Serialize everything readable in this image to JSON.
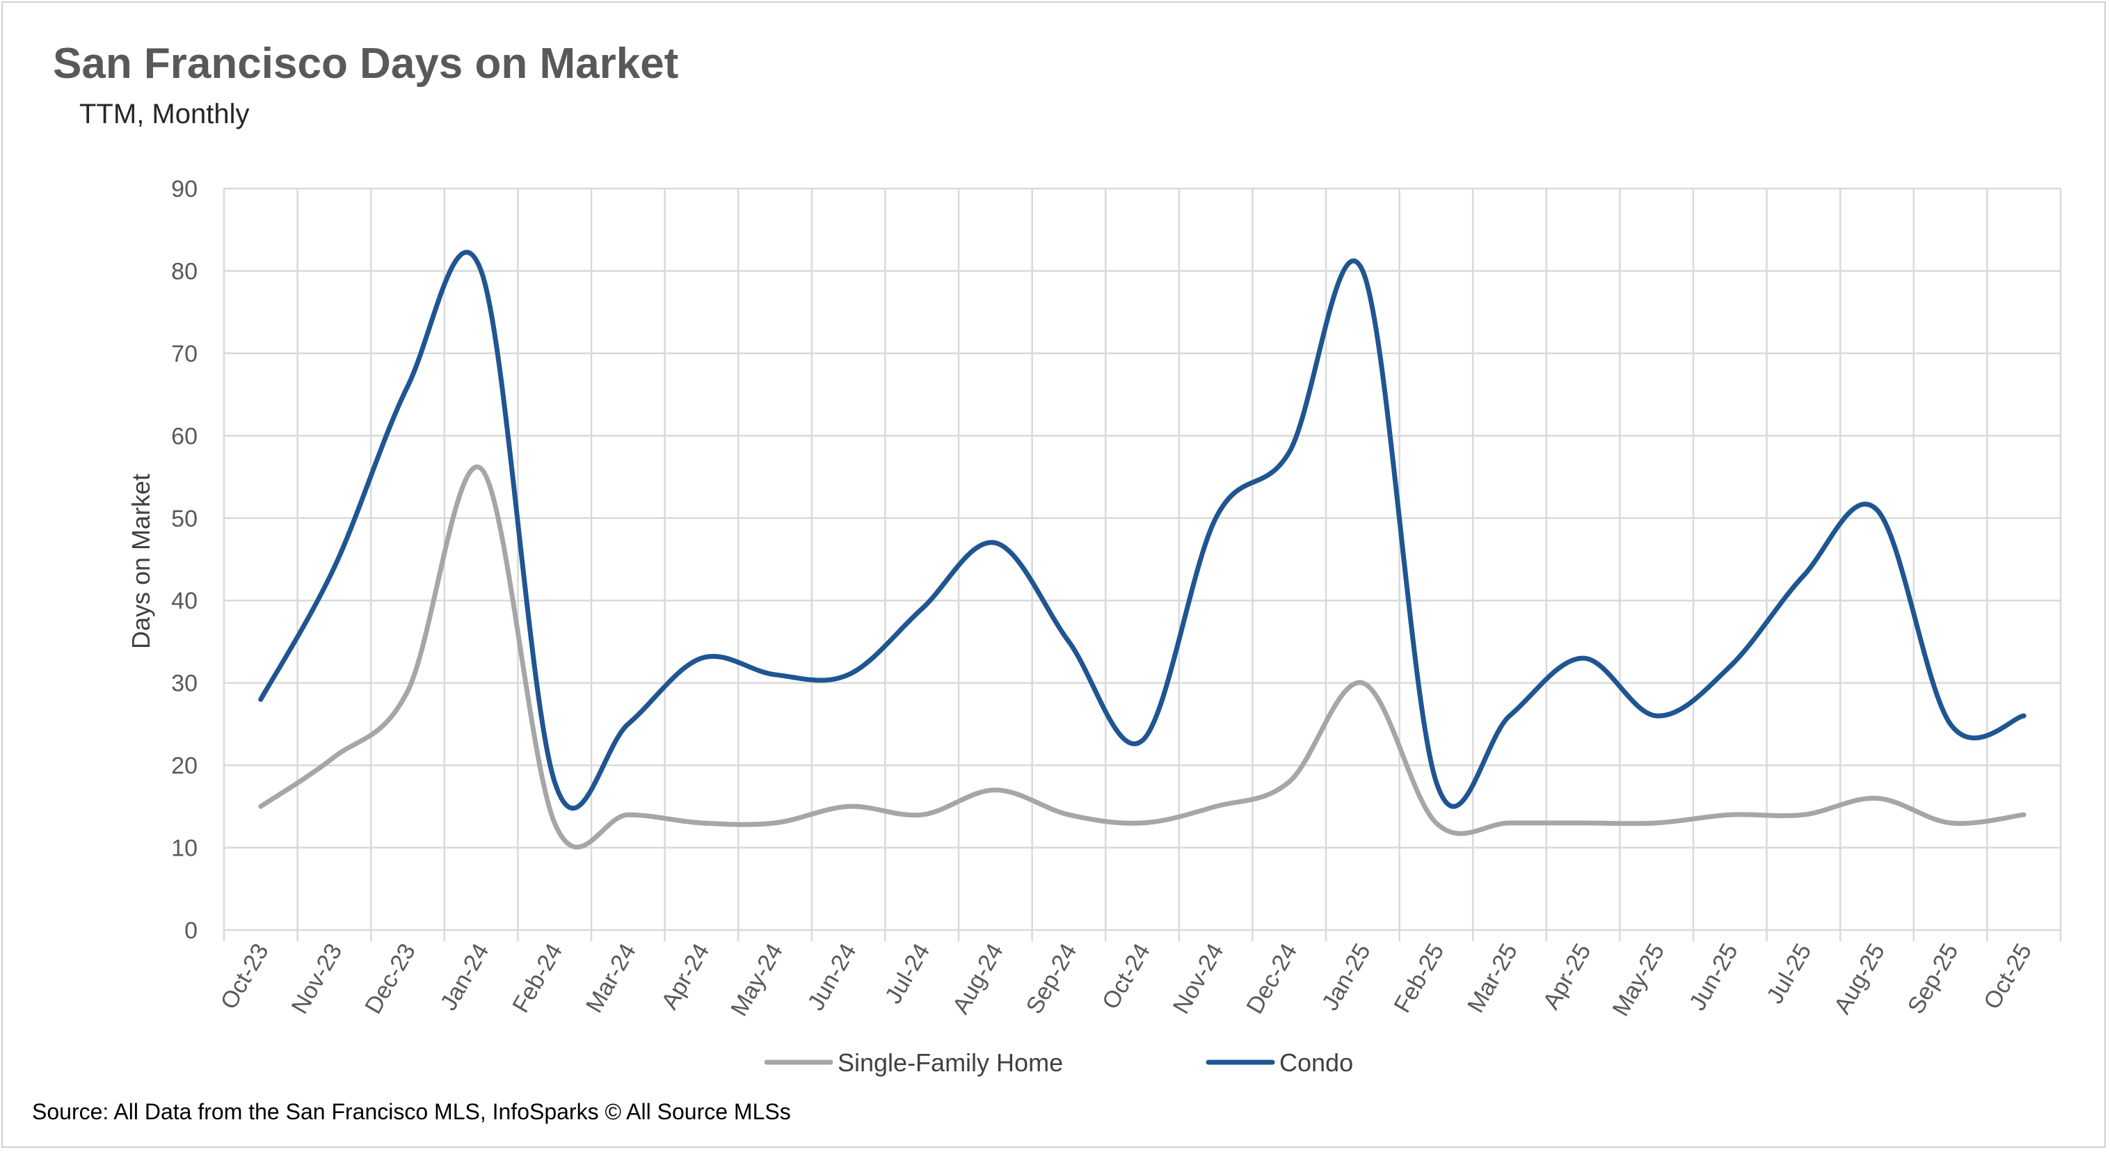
{
  "chart_data": {
    "type": "line",
    "title": "San Francisco Days on Market",
    "subtitle": "TTM, Monthly",
    "ylabel": "Days on Market",
    "xlabel": "",
    "ylim": [
      0,
      90
    ],
    "yticks": [
      0,
      10,
      20,
      30,
      40,
      50,
      60,
      70,
      80,
      90
    ],
    "grid": true,
    "legend_position": "bottom",
    "categories": [
      "Oct-23",
      "Nov-23",
      "Dec-23",
      "Jan-24",
      "Feb-24",
      "Mar-24",
      "Apr-24",
      "May-24",
      "Jun-24",
      "Jul-24",
      "Aug-24",
      "Sep-24",
      "Oct-24",
      "Nov-24",
      "Dec-24",
      "Jan-25",
      "Feb-25",
      "Mar-25",
      "Apr-25",
      "May-25",
      "Jun-25",
      "Jul-25",
      "Aug-25",
      "Sep-25",
      "Oct-25"
    ],
    "series": [
      {
        "name": "Single-Family Home",
        "color": "#a6a6a6",
        "values": [
          15,
          21,
          29,
          56,
          13,
          14,
          13,
          13,
          15,
          14,
          17,
          14,
          13,
          15,
          18,
          30,
          13,
          13,
          13,
          13,
          14,
          14,
          16,
          13,
          14
        ]
      },
      {
        "name": "Condo",
        "color": "#1f5591",
        "values": [
          28,
          44,
          66,
          80,
          18,
          25,
          33,
          31,
          31,
          39,
          47,
          35,
          23,
          50,
          58,
          80,
          18,
          26,
          33,
          26,
          32,
          43,
          51,
          25,
          26
        ]
      }
    ],
    "source": "Source: All Data from the San Francisco MLS, InfoSparks © All Source MLSs"
  }
}
